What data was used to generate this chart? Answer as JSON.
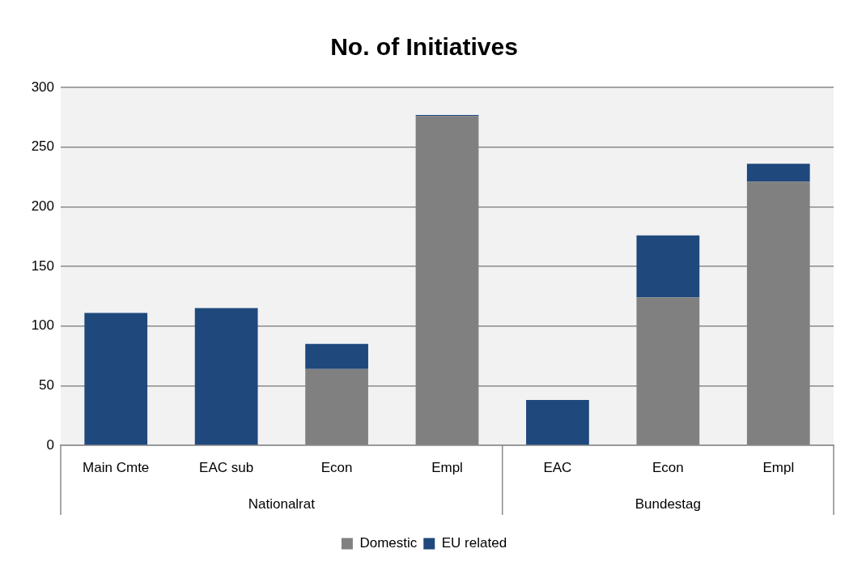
{
  "chart_data": {
    "type": "bar",
    "title": "No. of Initiatives",
    "categories": [
      "Main Cmte",
      "EAC sub",
      "Econ",
      "Empl",
      "EAC",
      "Econ",
      "Empl"
    ],
    "series": [
      {
        "name": "Domestic",
        "color": "#808080",
        "values": [
          0,
          0,
          64,
          276,
          0,
          124,
          221
        ]
      },
      {
        "name": "EU related",
        "color": "#1f497d",
        "values": [
          111,
          115,
          21,
          1,
          38,
          52,
          15
        ]
      }
    ],
    "stacked": true,
    "ylim": [
      0,
      300
    ],
    "yticks": [
      0,
      50,
      100,
      150,
      200,
      250,
      300
    ],
    "grid": "y",
    "legend": "bottom",
    "annotations": [
      "Nationalrat",
      "Bundestag"
    ]
  }
}
